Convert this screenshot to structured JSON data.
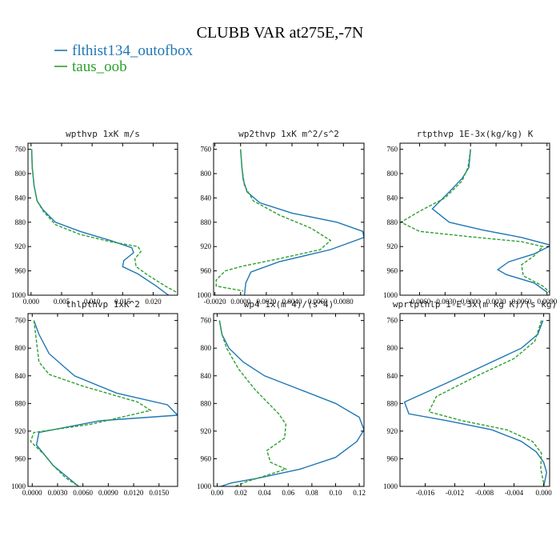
{
  "title": "CLUBB VAR at275E,-7N",
  "legend": [
    {
      "name": "flthist134_outofbox",
      "color": "#1f77b4",
      "dash": "solid"
    },
    {
      "name": "taus_oob",
      "color": "#2ca02c",
      "dash": "dashed"
    }
  ],
  "chart_data": [
    {
      "type": "line",
      "title": "wpthvp  1xK m/s",
      "xlim": [
        -0.0005,
        0.024
      ],
      "ylim": [
        1000,
        750
      ],
      "y_ticks": [
        760,
        800,
        840,
        880,
        920,
        960,
        1000
      ],
      "x_ticks": [
        0.0,
        0.005,
        0.01,
        0.015,
        0.02
      ],
      "x_tick_labels": [
        "0.000",
        "0.005",
        "0.010",
        "0.015",
        "0.020"
      ],
      "series": [
        {
          "name": "flthist134_outofbox",
          "x": [
            0.0001,
            0.0002,
            0.0005,
            0.001,
            0.002,
            0.004,
            0.008,
            0.013,
            0.0165,
            0.0168,
            0.0152,
            0.015,
            0.0175,
            0.0205,
            0.0225
          ],
          "y": [
            760,
            790,
            820,
            845,
            860,
            880,
            895,
            910,
            922,
            930,
            943,
            953,
            965,
            985,
            1000
          ]
        },
        {
          "name": "taus_oob",
          "x": [
            0.0001,
            0.0002,
            0.0005,
            0.001,
            0.002,
            0.004,
            0.008,
            0.013,
            0.0175,
            0.018,
            0.017,
            0.0172,
            0.019,
            0.022,
            0.024
          ],
          "y": [
            760,
            790,
            820,
            845,
            862,
            884,
            900,
            912,
            920,
            928,
            940,
            953,
            966,
            985,
            996
          ]
        }
      ]
    },
    {
      "type": "line",
      "title": "wp2thvp  1xK m^2/s^2",
      "xlim": [
        -0.0021,
        0.0096
      ],
      "ylim": [
        1000,
        750
      ],
      "y_ticks": [
        760,
        800,
        840,
        880,
        920,
        960,
        1000
      ],
      "x_ticks": [
        -0.002,
        0.0,
        0.002,
        0.004,
        0.006,
        0.008
      ],
      "x_tick_labels": [
        "-0.0020",
        "0.0000",
        "0.0020",
        "0.0040",
        "0.0060",
        "0.0080"
      ],
      "series": [
        {
          "name": "flthist134_outofbox",
          "x": [
            0.0,
            0.0001,
            0.0002,
            0.0005,
            0.0015,
            0.004,
            0.0075,
            0.0095,
            0.0096,
            0.007,
            0.003,
            0.0008,
            0.0004,
            0.0003
          ],
          "y": [
            760,
            790,
            810,
            830,
            848,
            865,
            880,
            895,
            905,
            925,
            945,
            962,
            980,
            1000
          ]
        },
        {
          "name": "taus_oob",
          "x": [
            0.0,
            0.0001,
            0.0003,
            0.001,
            0.003,
            0.0055,
            0.007,
            0.0062,
            0.003,
            0.0002,
            -0.0012,
            -0.0019,
            -0.0019,
            0.0002
          ],
          "y": [
            760,
            790,
            820,
            845,
            868,
            890,
            910,
            925,
            940,
            952,
            960,
            975,
            985,
            993
          ]
        }
      ]
    },
    {
      "type": "line",
      "title": "rtpthvp  1E-3x(kg/kg) K",
      "xlim": [
        -0.0083,
        0.0093
      ],
      "ylim": [
        1000,
        750
      ],
      "y_ticks": [
        760,
        800,
        840,
        880,
        920,
        960,
        1000
      ],
      "x_ticks": [
        -0.006,
        -0.003,
        0.0,
        0.003,
        0.006,
        0.009
      ],
      "x_tick_labels": [
        "-0.0060",
        "-0.0030",
        "0.0000",
        "0.0030",
        "0.0060",
        "0.0090"
      ],
      "series": [
        {
          "name": "flthist134_outofbox",
          "x": [
            0.0,
            -0.0002,
            -0.001,
            -0.0025,
            -0.0045,
            -0.0025,
            0.0015,
            0.006,
            0.0095,
            0.0075,
            0.0045,
            0.0032,
            0.0042,
            0.0075,
            0.009
          ],
          "y": [
            760,
            790,
            808,
            830,
            858,
            880,
            893,
            905,
            918,
            932,
            945,
            958,
            966,
            980,
            995
          ]
        },
        {
          "name": "taus_oob",
          "x": [
            0.0,
            -0.0003,
            -0.001,
            -0.003,
            -0.006,
            -0.0082,
            -0.006,
            0.0,
            0.006,
            0.0085,
            0.0075,
            0.006,
            0.0062,
            0.0085,
            0.0093
          ],
          "y": [
            760,
            790,
            812,
            840,
            862,
            880,
            895,
            904,
            912,
            920,
            935,
            950,
            968,
            985,
            995
          ]
        }
      ]
    },
    {
      "type": "line",
      "title": "thlpthvp  1xK^2",
      "xlim": [
        -0.0005,
        0.0172
      ],
      "ylim": [
        1000,
        750
      ],
      "y_ticks": [
        760,
        800,
        840,
        880,
        920,
        960,
        1000
      ],
      "x_ticks": [
        0.0,
        0.003,
        0.006,
        0.009,
        0.012,
        0.015
      ],
      "x_tick_labels": [
        "0.0000",
        "0.0030",
        "0.0060",
        "0.0090",
        "0.0120",
        "0.0150"
      ],
      "series": [
        {
          "name": "flthist134_outofbox",
          "x": [
            0.0002,
            0.0008,
            0.002,
            0.005,
            0.01,
            0.016,
            0.0172,
            0.008,
            0.0008,
            0.0005,
            0.0015,
            0.0025,
            0.004,
            0.0055
          ],
          "y": [
            760,
            780,
            808,
            840,
            865,
            882,
            897,
            905,
            922,
            940,
            955,
            970,
            985,
            1000
          ]
        },
        {
          "name": "taus_oob",
          "x": [
            0.0002,
            0.0005,
            0.0008,
            0.002,
            0.006,
            0.0125,
            0.014,
            0.007,
            0.0002,
            -0.0002,
            0.0015,
            0.0025,
            0.004,
            0.0055
          ],
          "y": [
            760,
            790,
            820,
            838,
            855,
            878,
            890,
            910,
            922,
            935,
            955,
            970,
            988,
            1000
          ]
        }
      ]
    },
    {
      "type": "line",
      "title": "wp4  1x(m^4)/(s^4)",
      "xlim": [
        -0.003,
        0.124
      ],
      "ylim": [
        1000,
        750
      ],
      "y_ticks": [
        760,
        800,
        840,
        880,
        920,
        960,
        1000
      ],
      "x_ticks": [
        0.0,
        0.02,
        0.04,
        0.06,
        0.08,
        0.1,
        0.12
      ],
      "x_tick_labels": [
        "0.00",
        "0.02",
        "0.04",
        "0.06",
        "0.08",
        "0.10",
        "0.12"
      ],
      "series": [
        {
          "name": "flthist134_outofbox",
          "x": [
            0.002,
            0.004,
            0.01,
            0.022,
            0.04,
            0.07,
            0.1,
            0.12,
            0.124,
            0.118,
            0.1,
            0.07,
            0.035,
            0.012,
            0.003
          ],
          "y": [
            760,
            780,
            800,
            820,
            840,
            860,
            880,
            900,
            918,
            935,
            958,
            975,
            988,
            995,
            1000
          ]
        },
        {
          "name": "taus_oob",
          "x": [
            0.002,
            0.004,
            0.008,
            0.018,
            0.032,
            0.052,
            0.058,
            0.057,
            0.042,
            0.045,
            0.058,
            0.04,
            0.025,
            0.015
          ],
          "y": [
            760,
            780,
            800,
            830,
            860,
            895,
            910,
            930,
            948,
            965,
            975,
            985,
            993,
            1000
          ]
        }
      ]
    },
    {
      "type": "line",
      "title": "wprtpthlp  1-E-3x(m kg K)/(s kg)",
      "xlim": [
        -0.0194,
        0.0008
      ],
      "ylim": [
        1000,
        750
      ],
      "y_ticks": [
        760,
        800,
        840,
        880,
        920,
        960,
        1000
      ],
      "x_ticks": [
        -0.016,
        -0.012,
        -0.008,
        -0.004,
        0.0
      ],
      "x_tick_labels": [
        "-0.016",
        "-0.012",
        "-0.008",
        "-0.004",
        "0.000"
      ],
      "series": [
        {
          "name": "flthist134_outofbox",
          "x": [
            -0.0001,
            -0.0008,
            -0.003,
            -0.008,
            -0.013,
            -0.0188,
            -0.0182,
            -0.013,
            -0.007,
            -0.003,
            -0.001,
            0.0,
            0.0004,
            0.0
          ],
          "y": [
            760,
            780,
            800,
            825,
            850,
            878,
            895,
            905,
            918,
            935,
            950,
            965,
            980,
            1000
          ]
        },
        {
          "name": "taus_oob",
          "x": [
            -0.0003,
            -0.0012,
            -0.004,
            -0.009,
            -0.0145,
            -0.0155,
            -0.011,
            -0.005,
            -0.0015,
            -0.0003,
            -0.0004,
            0.0
          ],
          "y": [
            760,
            790,
            815,
            840,
            870,
            892,
            905,
            918,
            935,
            952,
            975,
            995
          ]
        }
      ]
    }
  ]
}
